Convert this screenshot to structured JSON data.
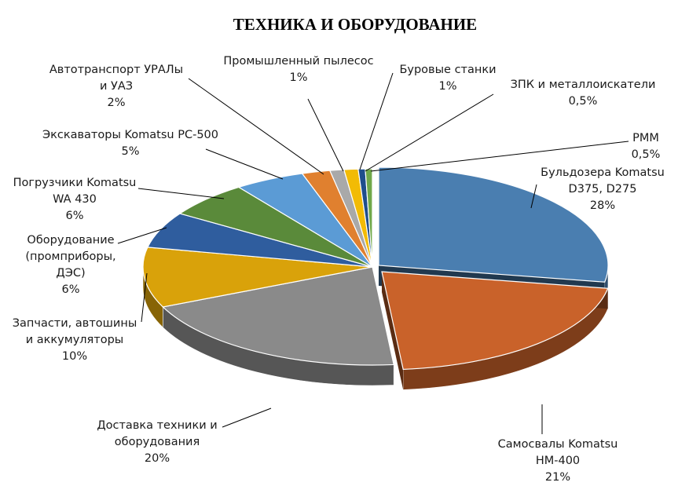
{
  "chart_data": {
    "type": "pie",
    "title": "ТЕХНИКА И ОБОРУДОВАНИЕ",
    "slices": [
      {
        "label_lines": [
          "Бульдозера Komatsu",
          "D375, D275"
        ],
        "value_text": "28%",
        "value": 28,
        "color": "#4a7eb0"
      },
      {
        "label_lines": [
          "Самосвалы Komatsu",
          "HM-400"
        ],
        "value_text": "21%",
        "value": 21,
        "color": "#c9622a"
      },
      {
        "label_lines": [
          "Доставка техники и",
          "оборудования"
        ],
        "value_text": "20%",
        "value": 20,
        "color": "#8a8a8a"
      },
      {
        "label_lines": [
          "Запчасти, автошины",
          "и аккумуляторы"
        ],
        "value_text": "10%",
        "value": 10,
        "color": "#d9a20a"
      },
      {
        "label_lines": [
          "Оборудование",
          "(промприборы,",
          "ДЭС)"
        ],
        "value_text": "6%",
        "value": 6,
        "color": "#2f5d9e"
      },
      {
        "label_lines": [
          "Погрузчики Komatsu",
          "WA 430"
        ],
        "value_text": "6%",
        "value": 6,
        "color": "#5a8a3a"
      },
      {
        "label_lines": [
          "Экскаваторы Komatsu PC-500"
        ],
        "value_text": "5%",
        "value": 5,
        "color": "#5b9bd5"
      },
      {
        "label_lines": [
          "Автотранспорт УРАЛы",
          "и УАЗ"
        ],
        "value_text": "2%",
        "value": 2,
        "color": "#e0802f"
      },
      {
        "label_lines": [
          "Промышленный пылесос"
        ],
        "value_text": "1%",
        "value": 1,
        "color": "#a9a9a9"
      },
      {
        "label_lines": [
          "Буровые станки"
        ],
        "value_text": "1%",
        "value": 1,
        "color": "#f2bb05"
      },
      {
        "label_lines": [
          "ЗПК и металлоискатели"
        ],
        "value_text": "0,5%",
        "value": 0.5,
        "color": "#1f4e8c"
      },
      {
        "label_lines": [
          "РММ"
        ],
        "value_text": "0,5%",
        "value": 0.5,
        "color": "#70a84a"
      }
    ]
  }
}
